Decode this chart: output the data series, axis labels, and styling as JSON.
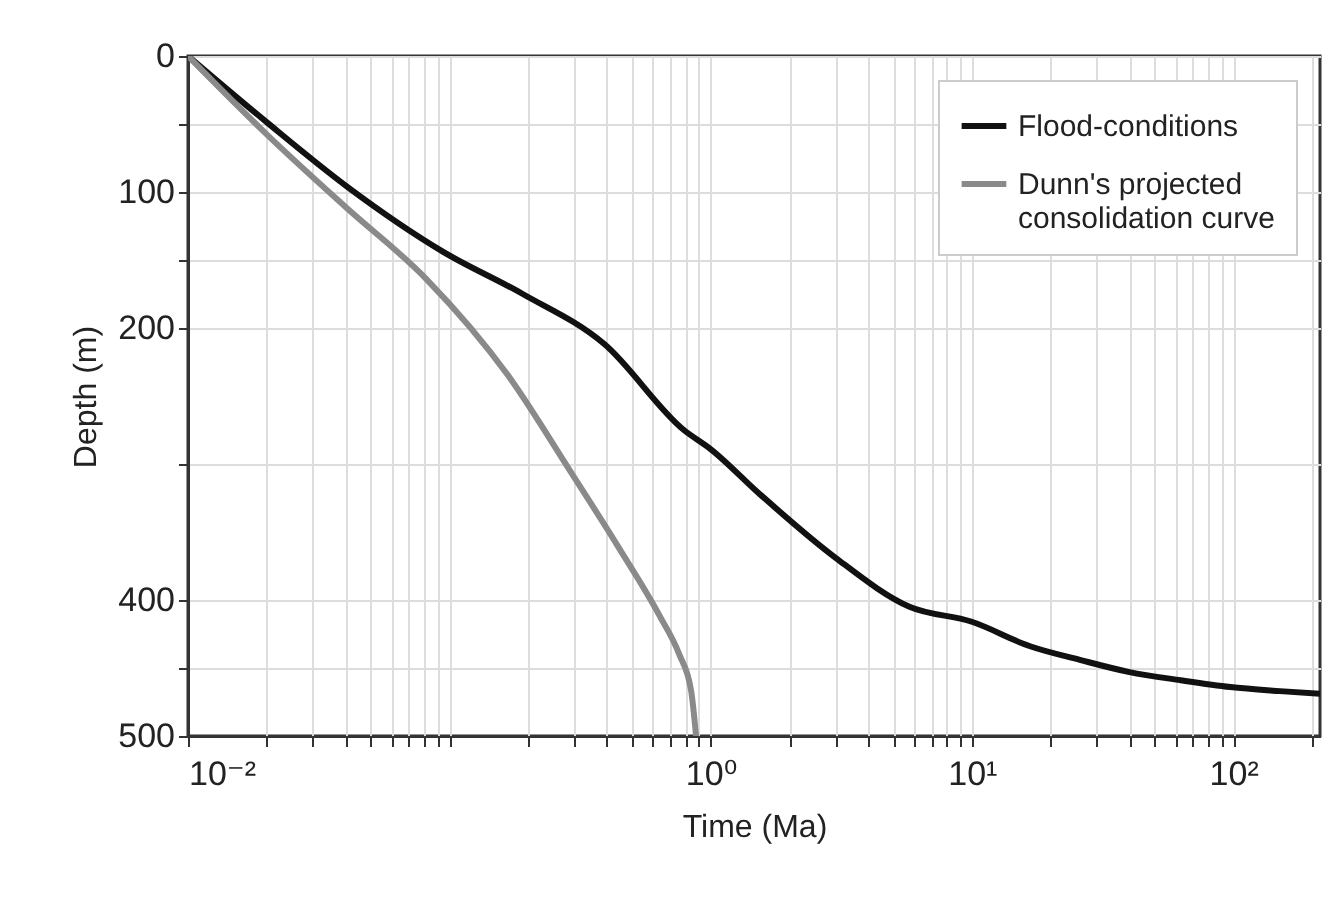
{
  "chart_data": {
    "type": "line",
    "xlabel": "Time (Ma)",
    "ylabel": "Depth (m)",
    "log": "x",
    "grid": true,
    "legend": "top right",
    "xlim": [
      0.01,
      215
    ],
    "ylim": [
      500,
      0
    ],
    "xticks": [
      {
        "value": 0.01,
        "label": "10⁻²"
      },
      {
        "value": 0.02,
        "label": null
      },
      {
        "value": 0.03,
        "label": null
      },
      {
        "value": 0.04,
        "label": null
      },
      {
        "value": 0.05,
        "label": null
      },
      {
        "value": 0.06,
        "label": null
      },
      {
        "value": 0.07,
        "label": null
      },
      {
        "value": 0.08,
        "label": null
      },
      {
        "value": 0.09,
        "label": null
      },
      {
        "value": 0.1,
        "label": null
      },
      {
        "value": 0.2,
        "label": null
      },
      {
        "value": 0.3,
        "label": null
      },
      {
        "value": 0.4,
        "label": null
      },
      {
        "value": 0.5,
        "label": null
      },
      {
        "value": 0.6,
        "label": null
      },
      {
        "value": 0.7,
        "label": null
      },
      {
        "value": 0.8,
        "label": null
      },
      {
        "value": 0.9,
        "label": null
      },
      {
        "value": 1,
        "label": "10⁰"
      },
      {
        "value": 2,
        "label": null
      },
      {
        "value": 3,
        "label": null
      },
      {
        "value": 4,
        "label": null
      },
      {
        "value": 5,
        "label": null
      },
      {
        "value": 6,
        "label": null
      },
      {
        "value": 7,
        "label": null
      },
      {
        "value": 8,
        "label": null
      },
      {
        "value": 9,
        "label": null
      },
      {
        "value": 10,
        "label": "10¹"
      },
      {
        "value": 20,
        "label": null
      },
      {
        "value": 30,
        "label": null
      },
      {
        "value": 40,
        "label": null
      },
      {
        "value": 50,
        "label": null
      },
      {
        "value": 60,
        "label": null
      },
      {
        "value": 70,
        "label": null
      },
      {
        "value": 80,
        "label": null
      },
      {
        "value": 90,
        "label": null
      },
      {
        "value": 100,
        "label": "10²"
      },
      {
        "value": 200,
        "label": null
      }
    ],
    "yticks": [
      0,
      {
        "value": 50,
        "label": null
      },
      100,
      {
        "value": 150,
        "label": null
      },
      200,
      {
        "value": 300,
        "label": null
      },
      400,
      {
        "value": 450,
        "label": null
      },
      500
    ],
    "series": [
      {
        "name": "Flood-conditions",
        "color": "#111111",
        "x": [
          0.01,
          0.0201,
          0.0406,
          0.0948,
          0.191,
          0.393,
          0.79,
          1,
          1.54,
          3.01,
          5.77,
          10,
          16.7,
          25.9,
          40.1,
          62.9,
          97.5,
          151,
          215
        ],
        "values": [
          0,
          49,
          96,
          144,
          175,
          212,
          275,
          289,
          322,
          369,
          405,
          416,
          434,
          444,
          453,
          459,
          464,
          467,
          469
        ]
      },
      {
        "name": "Dunn's projected consolidation curve",
        "color": "#8a8a8a",
        "x": [
          0.01,
          0.0201,
          0.0406,
          0.0817,
          0.168,
          0.292,
          0.447,
          0.64,
          0.759,
          0.843,
          0.88
        ],
        "values": [
          0,
          58,
          112,
          164,
          235,
          306,
          362,
          412,
          440,
          467,
          500
        ]
      }
    ]
  }
}
